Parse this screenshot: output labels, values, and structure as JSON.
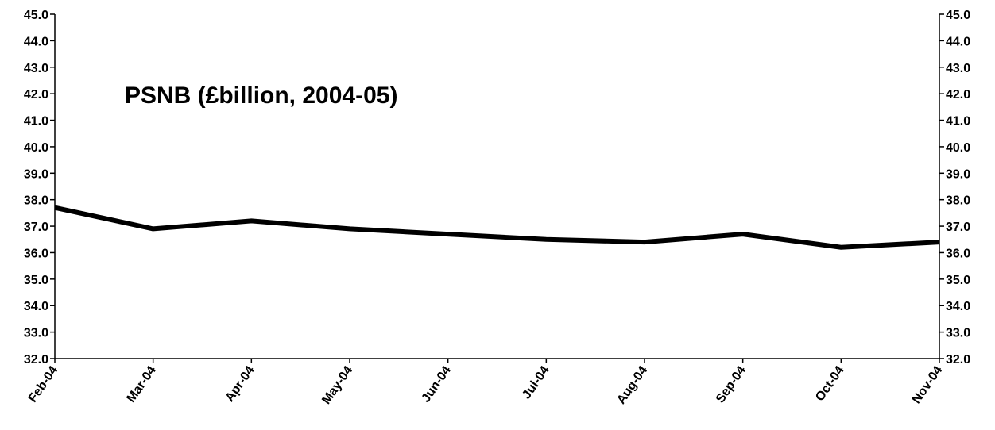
{
  "chart_data": {
    "type": "line",
    "title": "PSNB (£billion, 2004-05)",
    "xlabel": "",
    "ylabel": "",
    "categories": [
      "Feb-04",
      "Mar-04",
      "Apr-04",
      "May-04",
      "Jun-04",
      "Jul-04",
      "Aug-04",
      "Sep-04",
      "Oct-04",
      "Nov-04"
    ],
    "series": [
      {
        "values": [
          37.7,
          36.9,
          37.2,
          36.9,
          36.7,
          36.5,
          36.4,
          36.7,
          36.2,
          36.4
        ],
        "color": "#000000"
      }
    ],
    "ylim": [
      32.0,
      45.0
    ],
    "ytick_step": 1.0,
    "ytick_labels": [
      "32.0",
      "33.0",
      "34.0",
      "35.0",
      "36.0",
      "37.0",
      "38.0",
      "39.0",
      "40.0",
      "41.0",
      "42.0",
      "43.0",
      "44.0",
      "45.0"
    ],
    "y_axis_both_sides": true,
    "grid": false,
    "legend": "none"
  }
}
